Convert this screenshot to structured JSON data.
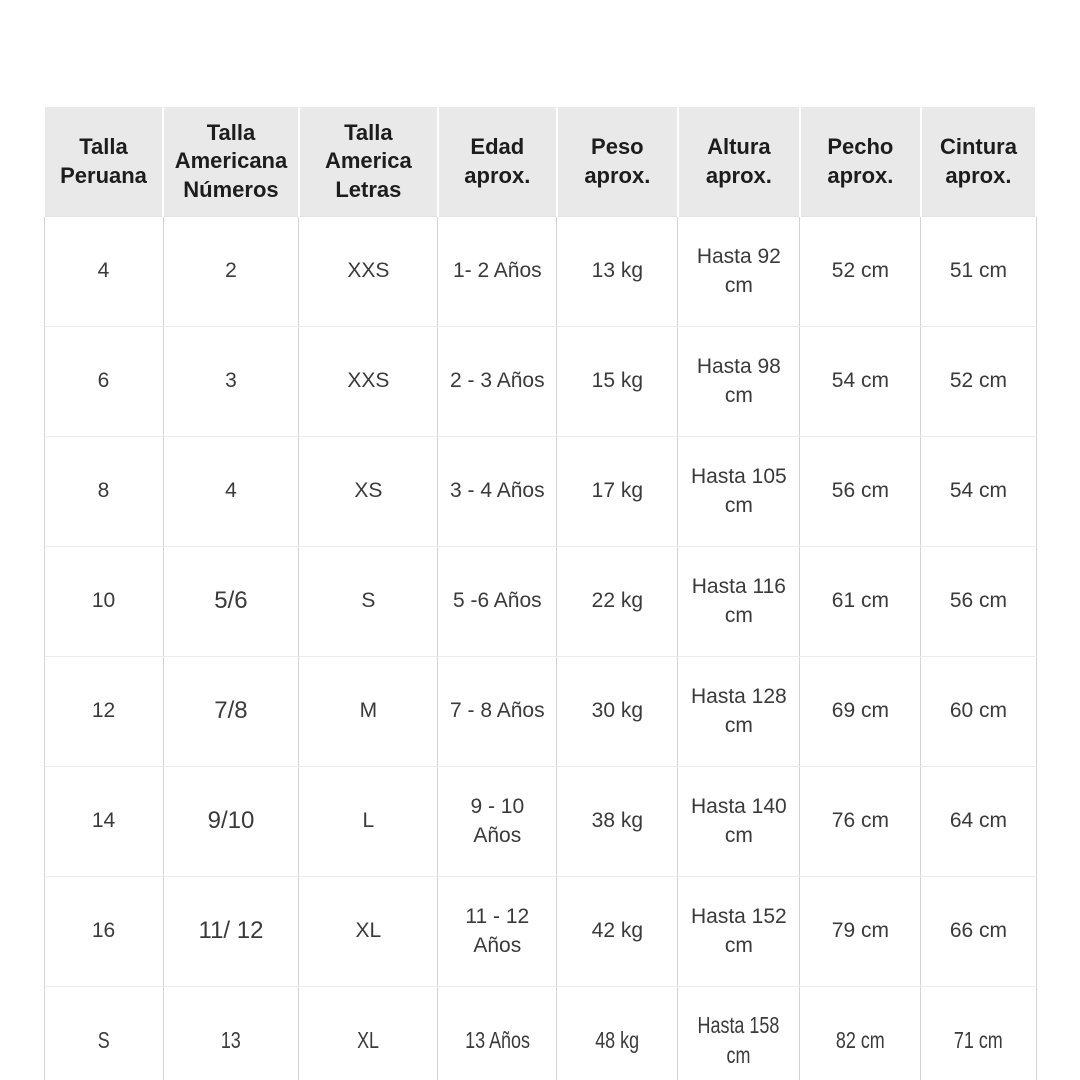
{
  "chart_data": {
    "type": "table",
    "columns": [
      "Talla Peruana",
      "Talla Americana Números",
      "Talla America Letras",
      "Edad aprox.",
      "Peso aprox.",
      "Altura aprox.",
      "Pecho aprox.",
      "Cintura aprox."
    ],
    "rows": [
      [
        "4",
        "2",
        "XXS",
        "1- 2 Años",
        "13 kg",
        "Hasta 92 cm",
        "52 cm",
        "51 cm"
      ],
      [
        "6",
        "3",
        "XXS",
        "2 - 3 Años",
        "15 kg",
        "Hasta 98 cm",
        "54 cm",
        "52 cm"
      ],
      [
        "8",
        "4",
        "XS",
        "3 - 4 Años",
        "17 kg",
        "Hasta 105 cm",
        "56 cm",
        "54 cm"
      ],
      [
        "10",
        "5/6",
        "S",
        "5 -6 Años",
        "22 kg",
        "Hasta 116 cm",
        "61 cm",
        "56 cm"
      ],
      [
        "12",
        "7/8",
        "M",
        "7 - 8 Años",
        "30 kg",
        "Hasta 128 cm",
        "69 cm",
        "60 cm"
      ],
      [
        "14",
        "9/10",
        "L",
        "9 - 10 Años",
        "38 kg",
        "Hasta 140 cm",
        "76 cm",
        "64 cm"
      ],
      [
        "16",
        "11/ 12",
        "XL",
        "11 - 12 Años",
        "42 kg",
        "Hasta 152 cm",
        "79 cm",
        "66 cm"
      ],
      [
        "S",
        "13",
        "XL",
        "13 Años",
        "48 kg",
        "Hasta 158 cm",
        "82 cm",
        "71 cm"
      ]
    ],
    "layout": {
      "grid": true,
      "legend": "none",
      "header_bg": "#e9e9e9",
      "header_text_color": "#1d1d1d",
      "body_bg": "#ffffff",
      "body_text_color": "#3a3a3a",
      "vertical_border_color": "#d4d4d4",
      "horizontal_border_color": "#ebebeb",
      "header_separator_color": "#ffffff",
      "col_widths_pct": [
        12.0,
        13.7,
        14.0,
        12.0,
        12.2,
        12.3,
        12.2,
        11.6
      ],
      "wrap_last_word_col": 5,
      "condensed_row_index": 7,
      "enlarged_cells": [
        [
          3,
          1
        ],
        [
          4,
          1
        ],
        [
          5,
          1
        ],
        [
          6,
          1
        ]
      ]
    }
  }
}
